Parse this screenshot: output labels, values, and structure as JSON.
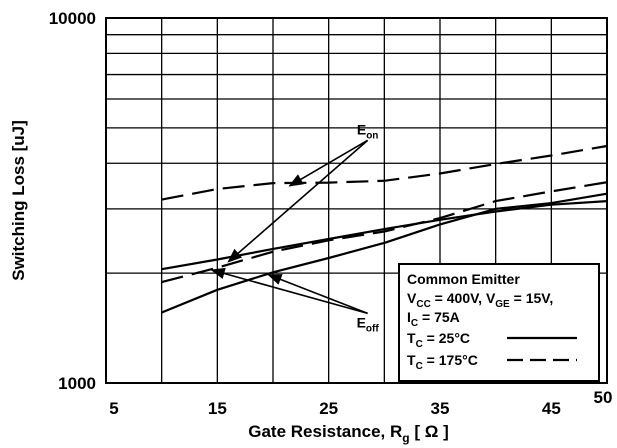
{
  "chart_data": {
    "type": "line",
    "title": "",
    "xlabel": "Gate Resistance, R_g [Ω]",
    "xlabel_parts": {
      "main": "Gate Resistance, R",
      "sub": "g",
      "unit": " [ Ω ]"
    },
    "ylabel": "Switching Loss [uJ]",
    "xlim": [
      5,
      50
    ],
    "ylim": [
      1000,
      10000
    ],
    "yscale": "log",
    "grid": true,
    "x_ticks": [
      {
        "value": 5,
        "label": "5"
      },
      {
        "value": 15,
        "label": "15"
      },
      {
        "value": 25,
        "label": "25"
      },
      {
        "value": 35,
        "label": "35"
      },
      {
        "value": 45,
        "label": "45"
      },
      {
        "value": 50,
        "label": "50"
      }
    ],
    "y_ticks": [
      {
        "value": 1000,
        "label": "1000"
      },
      {
        "value": 10000,
        "label": "10000"
      }
    ],
    "series": [
      {
        "name": "E_on, T_C = 25°C",
        "style": "solid",
        "x": [
          10,
          15,
          20,
          25,
          30,
          35,
          40,
          45,
          50
        ],
        "y": [
          2050,
          2180,
          2330,
          2480,
          2640,
          2800,
          2950,
          3080,
          3150
        ]
      },
      {
        "name": "E_off, T_C = 25°C",
        "style": "solid",
        "x": [
          10,
          15,
          20,
          25,
          30,
          35,
          40,
          45,
          50
        ],
        "y": [
          1560,
          1800,
          2010,
          2200,
          2420,
          2720,
          3000,
          3110,
          3300
        ]
      },
      {
        "name": "E_on, T_C = 175°C",
        "style": "dashed",
        "x": [
          10,
          15,
          20,
          25,
          30,
          35,
          40,
          45,
          50
        ],
        "y": [
          3180,
          3400,
          3530,
          3540,
          3580,
          3750,
          3980,
          4200,
          4460
        ]
      },
      {
        "name": "E_off, T_C = 175°C",
        "style": "dashed",
        "x": [
          10,
          15,
          20,
          25,
          30,
          35,
          40,
          45,
          50
        ],
        "y": [
          1890,
          2070,
          2290,
          2460,
          2600,
          2830,
          3150,
          3350,
          3550
        ]
      }
    ],
    "annotations": [
      {
        "id": "eon",
        "label": "E",
        "sub": "on",
        "x": 28.5,
        "y": 4800,
        "arrows": [
          {
            "x": 21.5,
            "y": 3470
          },
          {
            "x": 16,
            "y": 2150
          }
        ]
      },
      {
        "id": "eoff",
        "label": "E",
        "sub": "off",
        "x": 28.5,
        "y": 1420,
        "arrows": [
          {
            "x": 14.5,
            "y": 2040
          },
          {
            "x": 19.6,
            "y": 1980
          }
        ]
      }
    ],
    "legend": {
      "position": "bottom-right",
      "lines": [
        {
          "main": "Common Emitter"
        },
        {
          "parts": [
            [
              "V",
              "CC",
              " = 400V, V"
            ],
            [
              "",
              "GE",
              " = 15V,"
            ]
          ]
        },
        {
          "parts": [
            [
              "I",
              "C",
              " = 75A"
            ]
          ]
        }
      ],
      "entries": [
        {
          "label": "T",
          "sub": "C",
          "rest": " = 25°C",
          "style": "solid"
        },
        {
          "label": "T",
          "sub": "C",
          "rest": " = 175°C",
          "style": "dashed"
        }
      ]
    }
  }
}
